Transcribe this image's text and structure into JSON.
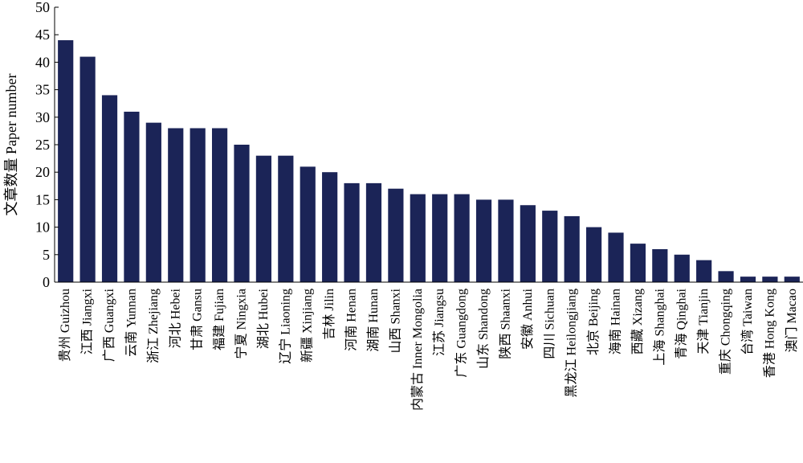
{
  "chart_data": {
    "type": "bar",
    "ylabel": "文章数量 Paper number",
    "xlabel": "",
    "ylim": [
      0,
      50
    ],
    "yticks": [
      0,
      5,
      10,
      15,
      20,
      25,
      30,
      35,
      40,
      45,
      50
    ],
    "grid": false,
    "bar_color": "#1b2457",
    "categories": [
      "贵州 Guizhou",
      "江西 Jiangxi",
      "广西 Guangxi",
      "云南 Yunnan",
      "浙江 Zhejiang",
      "河北 Hebei",
      "甘肃 Gansu",
      "福建 Fujian",
      "宁夏 Ningxia",
      "湖北 Hubei",
      "辽宁 Liaoning",
      "新疆 Xinjiang",
      "吉林 Jilin",
      "河南 Henan",
      "湖南 Hunan",
      "山西 Shanxi",
      "内蒙古 Inner Mongolia",
      "江苏 Jiangsu",
      "广东 Guangdong",
      "山东 Shandong",
      "陕西 Shaanxi",
      "安徽 Anhui",
      "四川 Sichuan",
      "黑龙江 Heilongjiang",
      "北京 Beijing",
      "海南 Hainan",
      "西藏 Xizang",
      "上海 Shanghai",
      "青海 Qinghai",
      "天津 Tianjin",
      "重庆 Chongqing",
      "台湾 Taiwan",
      "香港 Hong Kong",
      "澳门 Macao"
    ],
    "values": [
      44,
      41,
      34,
      31,
      29,
      28,
      28,
      28,
      25,
      23,
      23,
      21,
      20,
      18,
      18,
      17,
      16,
      16,
      16,
      15,
      15,
      14,
      13,
      12,
      10,
      9,
      7,
      6,
      5,
      4,
      2,
      1,
      1,
      1
    ]
  }
}
